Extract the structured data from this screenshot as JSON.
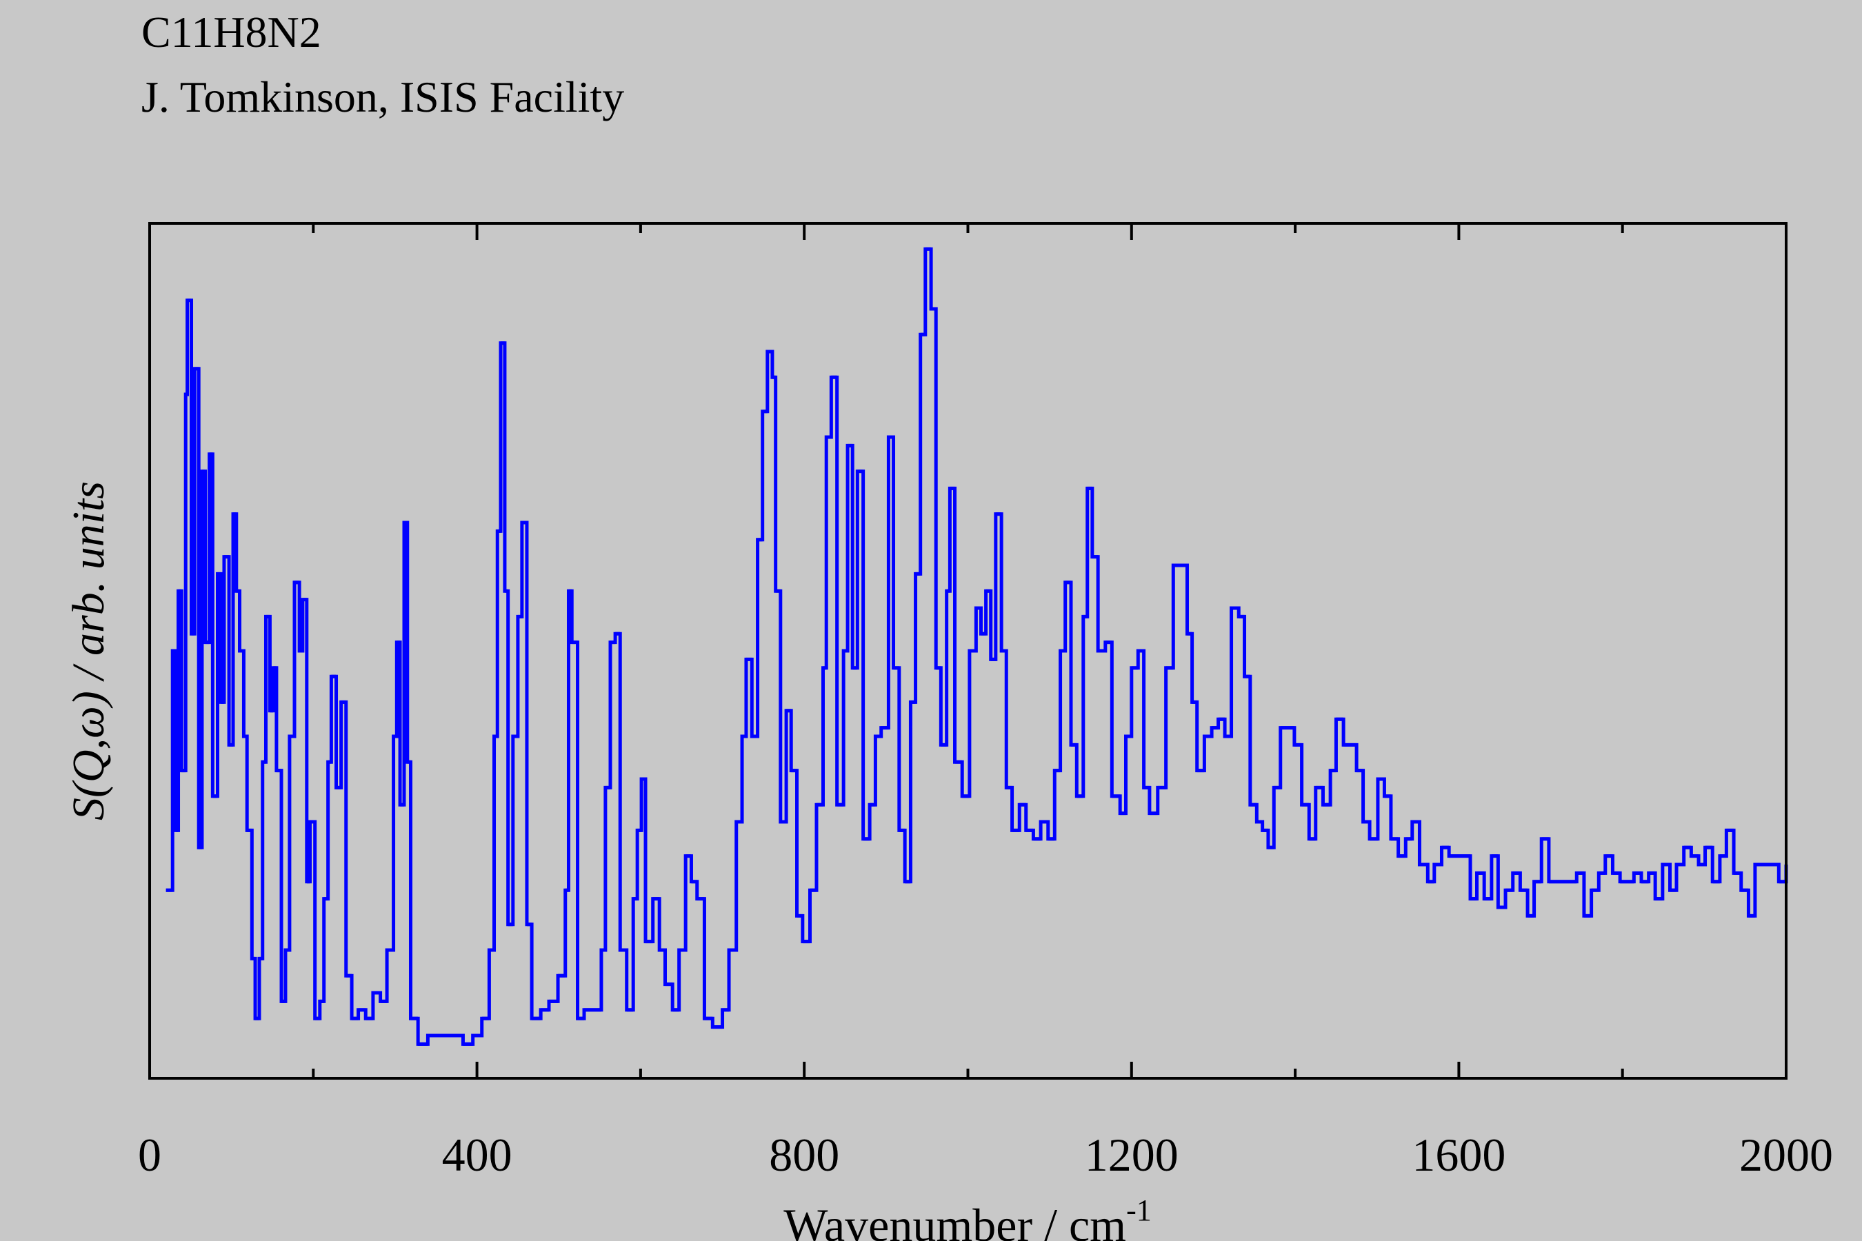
{
  "chart_data": {
    "type": "line",
    "drawstyle": "steps",
    "title": "C11H8N2",
    "subtitle": "J. Tomkinson, ISIS Facility",
    "xlabel": {
      "text": "Wavenumber / cm",
      "superscript": "-1"
    },
    "ylabel": "S(Q,ω) / arb. units",
    "xlim": [
      0,
      2000
    ],
    "xticks": [
      0,
      400,
      800,
      1200,
      1600,
      2000
    ],
    "xminor_ticks": [
      200,
      600,
      1000,
      1400,
      1800
    ],
    "ylim": [
      0,
      100
    ],
    "color": "#0000ff",
    "x": [
      20,
      28,
      32,
      35,
      39,
      44,
      46,
      51,
      55,
      60,
      64,
      68,
      73,
      77,
      83,
      87,
      91,
      97,
      102,
      106,
      110,
      115,
      119,
      125,
      129,
      134,
      138,
      142,
      147,
      151,
      155,
      161,
      166,
      171,
      177,
      183,
      187,
      192,
      196,
      202,
      208,
      213,
      218,
      222,
      228,
      234,
      240,
      247,
      255,
      264,
      273,
      282,
      290,
      298,
      302,
      306,
      311,
      315,
      319,
      328,
      340,
      354,
      369,
      383,
      395,
      406,
      415,
      421,
      425,
      429,
      434,
      438,
      444,
      450,
      455,
      461,
      467,
      478,
      488,
      499,
      508,
      512,
      516,
      523,
      531,
      543,
      552,
      557,
      563,
      569,
      575,
      583,
      591,
      596,
      601,
      606,
      615,
      623,
      630,
      639,
      647,
      655,
      662,
      669,
      678,
      688,
      700,
      708,
      717,
      724,
      729,
      736,
      743,
      749,
      755,
      761,
      765,
      771,
      778,
      784,
      791,
      798,
      807,
      815,
      823,
      827,
      833,
      840,
      848,
      853,
      859,
      865,
      872,
      880,
      887,
      894,
      903,
      909,
      916,
      923,
      930,
      936,
      942,
      948,
      955,
      961,
      967,
      974,
      978,
      984,
      993,
      1002,
      1010,
      1016,
      1022,
      1028,
      1034,
      1041,
      1047,
      1054,
      1063,
      1071,
      1080,
      1089,
      1098,
      1106,
      1113,
      1119,
      1126,
      1133,
      1141,
      1146,
      1152,
      1159,
      1168,
      1176,
      1186,
      1193,
      1200,
      1208,
      1215,
      1222,
      1232,
      1242,
      1251,
      1260,
      1268,
      1274,
      1280,
      1289,
      1298,
      1306,
      1314,
      1322,
      1331,
      1338,
      1345,
      1353,
      1360,
      1367,
      1374,
      1382,
      1390,
      1399,
      1408,
      1417,
      1425,
      1434,
      1443,
      1450,
      1459,
      1467,
      1475,
      1483,
      1491,
      1501,
      1509,
      1517,
      1526,
      1535,
      1543,
      1552,
      1562,
      1570,
      1579,
      1588,
      1597,
      1605,
      1614,
      1622,
      1631,
      1640,
      1648,
      1657,
      1666,
      1675,
      1684,
      1692,
      1701,
      1710,
      1718,
      1727,
      1736,
      1744,
      1753,
      1762,
      1771,
      1779,
      1788,
      1797,
      1806,
      1814,
      1823,
      1832,
      1840,
      1849,
      1858,
      1866,
      1875,
      1884,
      1893,
      1901,
      1910,
      1919,
      1927,
      1936,
      1945,
      1954,
      1962,
      1980,
      1991,
      2000
    ],
    "values": [
      22,
      50,
      29,
      57,
      36,
      80,
      91,
      52,
      83,
      27,
      71,
      51,
      73,
      33,
      59,
      44,
      61,
      39,
      66,
      57,
      50,
      40,
      29,
      14,
      7,
      14,
      37,
      54,
      43,
      48,
      36,
      9,
      15,
      40,
      58,
      50,
      56,
      23,
      30,
      7,
      9,
      21,
      37,
      47,
      34,
      44,
      12,
      7,
      8,
      7,
      10,
      9,
      15,
      40,
      51,
      32,
      65,
      37,
      7,
      4,
      5,
      5,
      5,
      4,
      5,
      7,
      15,
      40,
      64,
      86,
      57,
      18,
      40,
      54,
      65,
      18,
      7,
      8,
      9,
      12,
      22,
      57,
      51,
      7,
      8,
      8,
      15,
      34,
      51,
      52,
      15,
      8,
      21,
      29,
      35,
      16,
      21,
      15,
      11,
      8,
      15,
      26,
      23,
      21,
      7,
      6,
      8,
      15,
      30,
      40,
      49,
      40,
      63,
      78,
      85,
      82,
      57,
      30,
      43,
      36,
      19,
      16,
      22,
      32,
      48,
      75,
      82,
      32,
      50,
      74,
      48,
      71,
      28,
      32,
      40,
      41,
      75,
      48,
      29,
      23,
      44,
      59,
      87,
      97,
      90,
      48,
      39,
      57,
      69,
      37,
      33,
      50,
      55,
      52,
      57,
      49,
      66,
      50,
      34,
      29,
      32,
      29,
      28,
      30,
      28,
      36,
      50,
      58,
      39,
      33,
      54,
      69,
      61,
      50,
      51,
      33,
      31,
      40,
      48,
      50,
      34,
      31,
      34,
      48,
      60,
      60,
      52,
      44,
      36,
      40,
      41,
      42,
      40,
      55,
      54,
      47,
      32,
      30,
      29,
      27,
      34,
      41,
      41,
      39,
      32,
      28,
      34,
      32,
      36,
      42,
      39,
      39,
      36,
      30,
      28,
      35,
      33,
      28,
      26,
      28,
      30,
      25,
      23,
      25,
      27,
      26,
      26,
      26,
      21,
      24,
      21,
      26,
      20,
      22,
      24,
      22,
      19,
      23,
      28,
      23,
      23,
      23,
      23,
      24,
      19,
      22,
      24,
      26,
      24,
      23,
      23,
      24,
      23,
      24,
      21,
      25,
      22,
      25,
      27,
      26,
      25,
      27,
      23,
      26,
      29,
      24,
      22,
      19,
      25,
      25,
      23,
      25
    ]
  }
}
